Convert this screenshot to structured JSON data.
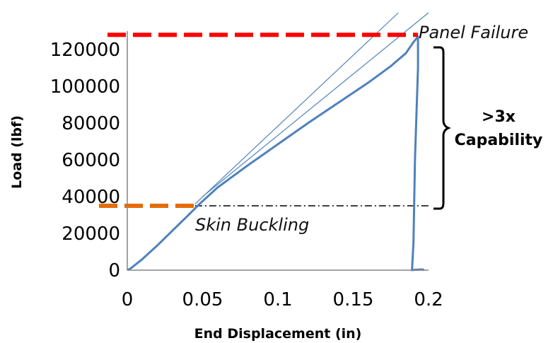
{
  "chart_data": {
    "type": "line",
    "xlabel": "End Displacement (in)",
    "ylabel": "Load (lbf)",
    "xlim": [
      0,
      0.2
    ],
    "ylim": [
      0,
      130000
    ],
    "x_ticks": [
      "0",
      "0.05",
      "0.1",
      "0.15",
      "0.2"
    ],
    "y_ticks": [
      "0",
      "20000",
      "40000",
      "60000",
      "80000",
      "100000",
      "120000"
    ],
    "series": [
      {
        "color": "#4f81bd",
        "points": [
          [
            0.0,
            0
          ],
          [
            0.002,
            800
          ],
          [
            0.01,
            6000
          ],
          [
            0.02,
            13500
          ],
          [
            0.03,
            21500
          ],
          [
            0.04,
            29500
          ],
          [
            0.048,
            36000
          ],
          [
            0.06,
            45000
          ],
          [
            0.08,
            57000
          ],
          [
            0.1,
            68500
          ],
          [
            0.12,
            80000
          ],
          [
            0.14,
            91000
          ],
          [
            0.16,
            102000
          ],
          [
            0.175,
            111000
          ],
          [
            0.185,
            118000
          ],
          [
            0.19,
            124000
          ],
          [
            0.193,
            127000
          ],
          [
            0.193,
            110000
          ],
          [
            0.191,
            60000
          ],
          [
            0.19,
            15000
          ],
          [
            0.189,
            0
          ],
          [
            0.191,
            200
          ],
          [
            0.196,
            400
          ],
          [
            0.197,
            0
          ]
        ]
      }
    ],
    "tangent_lines": [
      {
        "color": "#4f81bd",
        "points": [
          [
            0.045,
            36000
          ],
          [
            0.18,
            140000
          ]
        ]
      },
      {
        "color": "#4f81bd",
        "points": [
          [
            0.05,
            40000
          ],
          [
            0.2,
            140000
          ]
        ]
      }
    ],
    "reference_lines": [
      {
        "label": "Panel Failure",
        "y": 128000,
        "x_from": 0.0,
        "x_to": 0.193,
        "color": "#ff0000",
        "style": "dashed"
      },
      {
        "label": "Skin Buckling",
        "y": 35000,
        "x_from": 0.0,
        "x_to": 0.045,
        "color": "#e46c0a",
        "style": "dashed"
      }
    ],
    "dashdot_line": {
      "y": 35000,
      "x_from": 0.045,
      "x_to": 0.2,
      "color": "#000000"
    },
    "brace_annotation": {
      "line1": ">3x",
      "line2": "Capability",
      "y_from": 35000,
      "y_to": 128000
    }
  }
}
